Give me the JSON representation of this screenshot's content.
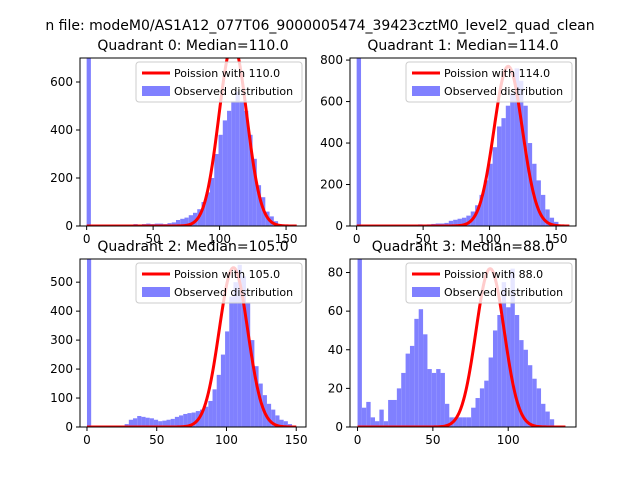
{
  "figure": {
    "suptitle": "n file: modeM0/AS1A12_077T06_9000005474_39423cztM0_level2_quad_clean"
  },
  "colors": {
    "poisson": "#ff0000",
    "observed": "#8080ff",
    "legend_border": "#cccccc",
    "axis": "#000000"
  },
  "chart_data": [
    {
      "type": "bar",
      "title": "Quadrant 0: Median=110.0",
      "xlim": [
        -5,
        165
      ],
      "ylim": [
        0,
        700
      ],
      "xticks": [
        0,
        50,
        100,
        150
      ],
      "yticks": [
        0,
        200,
        400,
        600
      ],
      "legend": {
        "placement": "top-right",
        "entries": [
          "Poission with 110.0",
          "Observed distribution"
        ]
      },
      "poisson_mean": 110,
      "poisson_peak": 760,
      "poisson_range": [
        0,
        158
      ],
      "bin_width": 3.2,
      "bins": [
        [
          0,
          700
        ],
        [
          3.2,
          0
        ],
        [
          6.4,
          0
        ],
        [
          9.6,
          0
        ],
        [
          12.8,
          0
        ],
        [
          16,
          0
        ],
        [
          19.2,
          3
        ],
        [
          22.4,
          0
        ],
        [
          25.6,
          0
        ],
        [
          28.8,
          5
        ],
        [
          32,
          5
        ],
        [
          35.2,
          8
        ],
        [
          38.4,
          5
        ],
        [
          41.6,
          8
        ],
        [
          44.8,
          10
        ],
        [
          48,
          8
        ],
        [
          51.2,
          10
        ],
        [
          54.4,
          10
        ],
        [
          57.6,
          8
        ],
        [
          60.8,
          12
        ],
        [
          64,
          15
        ],
        [
          67.2,
          25
        ],
        [
          70.4,
          30
        ],
        [
          73.6,
          35
        ],
        [
          76.8,
          45
        ],
        [
          80,
          55
        ],
        [
          83.2,
          70
        ],
        [
          86.4,
          100
        ],
        [
          89.6,
          140
        ],
        [
          92.8,
          200
        ],
        [
          96,
          300
        ],
        [
          99.2,
          380
        ],
        [
          102.4,
          440
        ],
        [
          105.6,
          480
        ],
        [
          108.8,
          520
        ],
        [
          112,
          560
        ],
        [
          115.2,
          520
        ],
        [
          118.4,
          480
        ],
        [
          121.6,
          380
        ],
        [
          124.8,
          280
        ],
        [
          128,
          170
        ],
        [
          131.2,
          120
        ],
        [
          134.4,
          60
        ],
        [
          137.6,
          40
        ],
        [
          140.8,
          20
        ],
        [
          144,
          8
        ],
        [
          147.2,
          5
        ]
      ]
    },
    {
      "type": "bar",
      "title": "Quadrant 1: Median=114.0",
      "xlim": [
        -5,
        165
      ],
      "ylim": [
        0,
        810
      ],
      "xticks": [
        0,
        50,
        100,
        150
      ],
      "yticks": [
        0,
        200,
        400,
        600,
        800
      ],
      "legend": {
        "placement": "top-right",
        "entries": [
          "Poission with 114.0",
          "Observed distribution"
        ]
      },
      "poisson_mean": 114,
      "poisson_peak": 770,
      "poisson_range": [
        0,
        160
      ],
      "bin_width": 3.3,
      "bins": [
        [
          0,
          810
        ],
        [
          3.3,
          0
        ],
        [
          6.6,
          0
        ],
        [
          9.9,
          0
        ],
        [
          13.2,
          0
        ],
        [
          16.5,
          0
        ],
        [
          19.8,
          0
        ],
        [
          23.1,
          0
        ],
        [
          26.4,
          5
        ],
        [
          29.7,
          0
        ],
        [
          33,
          3
        ],
        [
          36.3,
          5
        ],
        [
          39.6,
          5
        ],
        [
          42.9,
          5
        ],
        [
          46.2,
          8
        ],
        [
          49.5,
          5
        ],
        [
          52.8,
          8
        ],
        [
          56.1,
          10
        ],
        [
          59.4,
          12
        ],
        [
          62.7,
          12
        ],
        [
          66,
          15
        ],
        [
          69.3,
          25
        ],
        [
          72.6,
          30
        ],
        [
          75.9,
          35
        ],
        [
          79.2,
          40
        ],
        [
          82.5,
          50
        ],
        [
          85.8,
          70
        ],
        [
          89.1,
          100
        ],
        [
          92.4,
          150
        ],
        [
          95.7,
          220
        ],
        [
          99,
          300
        ],
        [
          102.3,
          380
        ],
        [
          105.6,
          480
        ],
        [
          108.9,
          520
        ],
        [
          112.2,
          580
        ],
        [
          115.5,
          640
        ],
        [
          118.8,
          760
        ],
        [
          122.1,
          700
        ],
        [
          125.4,
          580
        ],
        [
          128.7,
          400
        ],
        [
          132,
          300
        ],
        [
          135.3,
          220
        ],
        [
          138.6,
          150
        ],
        [
          141.9,
          80
        ],
        [
          145.2,
          40
        ],
        [
          148.5,
          20
        ],
        [
          151.8,
          5
        ]
      ]
    },
    {
      "type": "bar",
      "title": "Quadrant 2: Median=105.0",
      "xlim": [
        -5,
        157
      ],
      "ylim": [
        0,
        580
      ],
      "xticks": [
        0,
        50,
        100,
        150
      ],
      "yticks": [
        0,
        100,
        200,
        300,
        400,
        500
      ],
      "legend": {
        "placement": "top-right",
        "entries": [
          "Poission with 105.0",
          "Observed distribution"
        ]
      },
      "poisson_mean": 105,
      "poisson_peak": 550,
      "poisson_range": [
        0,
        150
      ],
      "bin_width": 3,
      "bins": [
        [
          0,
          580
        ],
        [
          3,
          0
        ],
        [
          6,
          0
        ],
        [
          9,
          0
        ],
        [
          12,
          0
        ],
        [
          15,
          0
        ],
        [
          18,
          0
        ],
        [
          21,
          3
        ],
        [
          24,
          5
        ],
        [
          27,
          10
        ],
        [
          30,
          25
        ],
        [
          33,
          30
        ],
        [
          36,
          38
        ],
        [
          39,
          35
        ],
        [
          42,
          32
        ],
        [
          45,
          30
        ],
        [
          48,
          25
        ],
        [
          51,
          20
        ],
        [
          54,
          22
        ],
        [
          57,
          25
        ],
        [
          60,
          28
        ],
        [
          63,
          35
        ],
        [
          66,
          40
        ],
        [
          69,
          45
        ],
        [
          72,
          48
        ],
        [
          75,
          50
        ],
        [
          78,
          55
        ],
        [
          81,
          60
        ],
        [
          84,
          70
        ],
        [
          87,
          90
        ],
        [
          90,
          130
        ],
        [
          93,
          180
        ],
        [
          96,
          250
        ],
        [
          99,
          330
        ],
        [
          102,
          450
        ],
        [
          105,
          500
        ],
        [
          108,
          560
        ],
        [
          111,
          520
        ],
        [
          114,
          430
        ],
        [
          117,
          300
        ],
        [
          120,
          210
        ],
        [
          123,
          150
        ],
        [
          126,
          110
        ],
        [
          129,
          80
        ],
        [
          132,
          60
        ],
        [
          135,
          40
        ],
        [
          138,
          25
        ],
        [
          141,
          20
        ],
        [
          144,
          10
        ],
        [
          147,
          5
        ]
      ]
    },
    {
      "type": "bar",
      "title": "Quadrant 3: Median=88.0",
      "xlim": [
        -5,
        145
      ],
      "ylim": [
        0,
        87
      ],
      "xticks": [
        0,
        50,
        100
      ],
      "yticks": [
        0,
        20,
        40,
        60,
        80
      ],
      "legend": {
        "placement": "top-right",
        "entries": [
          "Poission with 88.0",
          "Observed distribution"
        ]
      },
      "poisson_mean": 88,
      "poisson_peak": 82,
      "poisson_range": [
        0,
        138
      ],
      "bin_width": 2.9,
      "bins": [
        [
          0,
          87
        ],
        [
          2.9,
          10
        ],
        [
          5.8,
          13
        ],
        [
          8.7,
          5
        ],
        [
          11.6,
          3
        ],
        [
          14.5,
          9
        ],
        [
          17.4,
          3
        ],
        [
          20.3,
          14
        ],
        [
          23.2,
          14
        ],
        [
          26.1,
          20
        ],
        [
          29,
          28
        ],
        [
          31.9,
          38
        ],
        [
          34.8,
          42
        ],
        [
          37.7,
          56
        ],
        [
          40.6,
          61
        ],
        [
          43.5,
          48
        ],
        [
          46.4,
          30
        ],
        [
          49.3,
          28
        ],
        [
          52.2,
          30
        ],
        [
          55.1,
          28
        ],
        [
          58,
          12
        ],
        [
          60.9,
          5
        ],
        [
          63.8,
          5
        ],
        [
          66.7,
          5
        ],
        [
          69.6,
          5
        ],
        [
          72.5,
          5
        ],
        [
          75.4,
          10
        ],
        [
          78.3,
          15
        ],
        [
          81.2,
          20
        ],
        [
          84.1,
          24
        ],
        [
          87,
          36
        ],
        [
          89.9,
          50
        ],
        [
          92.8,
          58
        ],
        [
          95.7,
          75
        ],
        [
          98.6,
          62
        ],
        [
          101.5,
          82
        ],
        [
          104.4,
          58
        ],
        [
          107.3,
          45
        ],
        [
          110.2,
          40
        ],
        [
          113.1,
          32
        ],
        [
          116,
          25
        ],
        [
          118.9,
          20
        ],
        [
          121.8,
          12
        ],
        [
          124.7,
          8
        ],
        [
          127.6,
          4
        ]
      ]
    }
  ]
}
